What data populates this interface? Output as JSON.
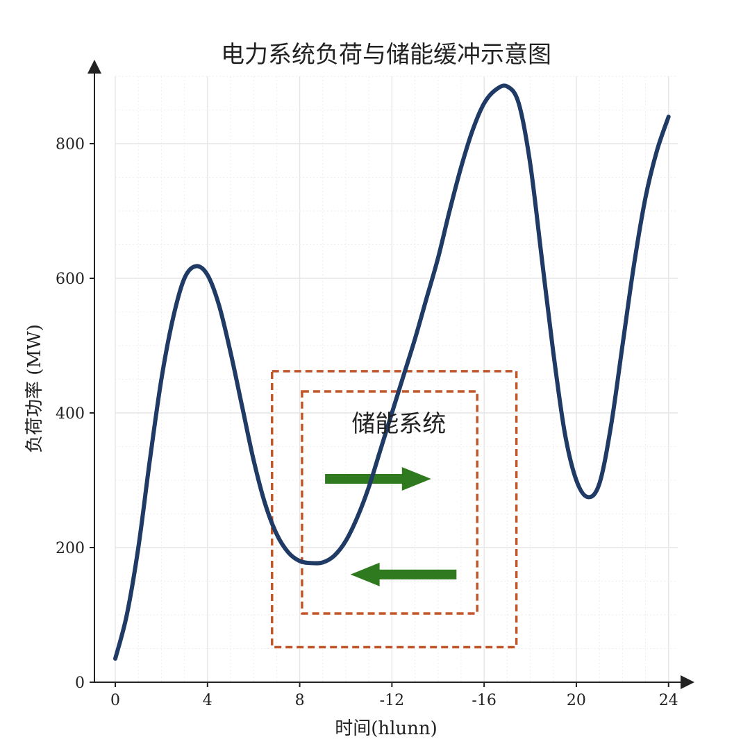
{
  "chart_data": {
    "type": "line",
    "title": "电力系统负荷与储能缓冲示意图",
    "xlabel": "时间(hlunn)",
    "ylabel": "负荷功率 (MW)",
    "xlim": [
      0,
      24.4
    ],
    "ylim": [
      0,
      900
    ],
    "x_ticks": [
      0,
      4,
      8,
      12,
      16,
      20,
      24
    ],
    "x_tick_labels": [
      "0",
      "4",
      "8",
      "-12",
      "-16",
      "20",
      "24"
    ],
    "y_ticks": [
      0,
      200,
      400,
      600,
      800
    ],
    "y_tick_labels": [
      "0",
      "200",
      "400",
      "600",
      "800"
    ],
    "grid": true,
    "series": [
      {
        "color": "#1f3a64",
        "points": [
          [
            0,
            35
          ],
          [
            0.5,
            100
          ],
          [
            1,
            200
          ],
          [
            1.5,
            330
          ],
          [
            2,
            450
          ],
          [
            2.5,
            540
          ],
          [
            3,
            600
          ],
          [
            3.5,
            618
          ],
          [
            4,
            605
          ],
          [
            4.5,
            560
          ],
          [
            5,
            490
          ],
          [
            5.5,
            410
          ],
          [
            6,
            330
          ],
          [
            6.5,
            265
          ],
          [
            7,
            220
          ],
          [
            7.5,
            193
          ],
          [
            8,
            180
          ],
          [
            8.5,
            177
          ],
          [
            9,
            178
          ],
          [
            9.5,
            188
          ],
          [
            10,
            210
          ],
          [
            10.5,
            245
          ],
          [
            11,
            290
          ],
          [
            11.5,
            345
          ],
          [
            12,
            400
          ],
          [
            12.5,
            455
          ],
          [
            13,
            510
          ],
          [
            13.5,
            570
          ],
          [
            14,
            630
          ],
          [
            14.5,
            700
          ],
          [
            15,
            765
          ],
          [
            15.5,
            820
          ],
          [
            16,
            860
          ],
          [
            16.5,
            880
          ],
          [
            17,
            885
          ],
          [
            17.5,
            860
          ],
          [
            18,
            770
          ],
          [
            18.5,
            630
          ],
          [
            19,
            490
          ],
          [
            19.5,
            370
          ],
          [
            20,
            300
          ],
          [
            20.5,
            275
          ],
          [
            21,
            295
          ],
          [
            21.5,
            380
          ],
          [
            22,
            500
          ],
          [
            22.5,
            620
          ],
          [
            23,
            720
          ],
          [
            23.5,
            790
          ],
          [
            24,
            840
          ]
        ]
      }
    ],
    "annotation": {
      "label": "储能系统",
      "box_color": "#c0562a",
      "arrow_color": "#2f7a1e",
      "outer_box": {
        "x": [
          6.8,
          17.4
        ],
        "y": [
          52,
          462
        ]
      },
      "inner_box": {
        "x": [
          8.1,
          15.7
        ],
        "y": [
          102,
          432
        ]
      },
      "label_pos": {
        "x": 12.3,
        "y": 372
      },
      "arrow_right": {
        "x": [
          9.1,
          13.7
        ],
        "y": 302
      },
      "arrow_left": {
        "x": [
          14.8,
          10.2
        ],
        "y": 160
      }
    }
  }
}
